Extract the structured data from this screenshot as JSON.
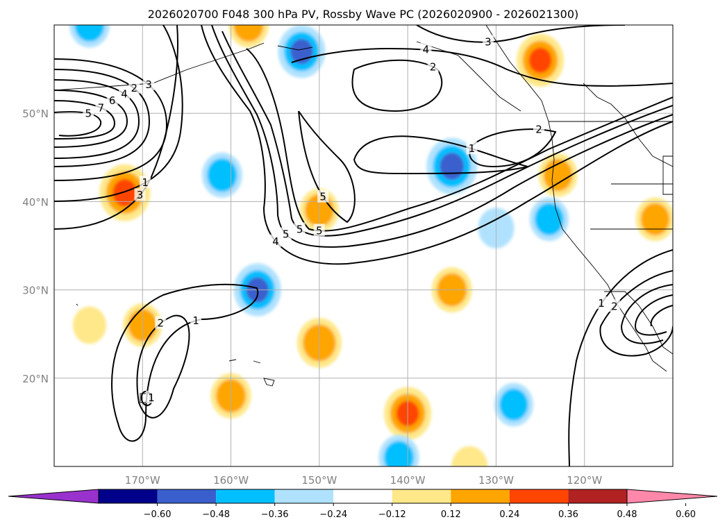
{
  "chart_data": {
    "type": "contour-map",
    "title": "2026020700 F048 300 hPa PV, Rossby Wave PC (2026020900 - 2026021300)",
    "x_ticks": [
      {
        "lon": -170,
        "label": "170°W"
      },
      {
        "lon": -160,
        "label": "160°W"
      },
      {
        "lon": -150,
        "label": "150°W"
      },
      {
        "lon": -140,
        "label": "140°W"
      },
      {
        "lon": -130,
        "label": "130°W"
      },
      {
        "lon": -120,
        "label": "120°W"
      }
    ],
    "y_ticks": [
      {
        "lat": 20,
        "label": "20°N"
      },
      {
        "lat": 30,
        "label": "30°N"
      },
      {
        "lat": 40,
        "label": "40°N"
      },
      {
        "lat": 50,
        "label": "50°N"
      }
    ],
    "lon_range": [
      -180,
      -110
    ],
    "lat_range": [
      10,
      60
    ],
    "grid": true,
    "colorbar": {
      "orientation": "horizontal",
      "extend": "both",
      "bounds": [
        -0.6,
        -0.48,
        -0.36,
        -0.24,
        -0.12,
        0.12,
        0.24,
        0.36,
        0.48,
        0.6
      ],
      "tick_labels": [
        "−0.60",
        "−0.48",
        "−0.36",
        "−0.24",
        "−0.12",
        "0.12",
        "0.24",
        "0.36",
        "0.48",
        "0.60"
      ],
      "colors": [
        "#9932cc",
        "#00008b",
        "#3a5fcd",
        "#00bfff",
        "#b0e2ff",
        "#ffffff",
        "#ffe88a",
        "#ffa500",
        "#ff4500",
        "#b22222",
        "#ff88aa"
      ]
    },
    "pv_contour_labels": [
      "2",
      "4",
      "6",
      "7",
      "5",
      "3",
      "1",
      "3",
      "4",
      "5",
      "5",
      "5",
      "4",
      "5",
      "2",
      "1",
      "2",
      "3",
      "1",
      "2",
      "1",
      "1",
      "2"
    ],
    "anomaly_blobs": [
      {
        "lon": -152,
        "lat": 57,
        "value": -0.4
      },
      {
        "lon": -172,
        "lat": 41,
        "value": 0.45
      },
      {
        "lon": -161,
        "lat": 43,
        "value": -0.3
      },
      {
        "lon": -150,
        "lat": 39,
        "value": 0.28
      },
      {
        "lon": -157,
        "lat": 30,
        "value": -0.4
      },
      {
        "lon": -150,
        "lat": 24,
        "value": 0.36
      },
      {
        "lon": -135,
        "lat": 30,
        "value": 0.3
      },
      {
        "lon": -135,
        "lat": 44,
        "value": -0.45
      },
      {
        "lon": -125,
        "lat": 56,
        "value": 0.4
      },
      {
        "lon": -123,
        "lat": 43,
        "value": 0.28
      },
      {
        "lon": -112,
        "lat": 38,
        "value": 0.28
      },
      {
        "lon": -124,
        "lat": 38,
        "value": -0.28
      },
      {
        "lon": -130,
        "lat": 37,
        "value": -0.24
      },
      {
        "lon": -160,
        "lat": 18,
        "value": 0.3
      },
      {
        "lon": -140,
        "lat": 16,
        "value": 0.4
      },
      {
        "lon": -170,
        "lat": 26,
        "value": 0.28
      },
      {
        "lon": -176,
        "lat": 26,
        "value": 0.2
      },
      {
        "lon": -128,
        "lat": 17,
        "value": -0.28
      },
      {
        "lon": -141,
        "lat": 11,
        "value": -0.3
      },
      {
        "lon": -133,
        "lat": 10,
        "value": 0.24
      },
      {
        "lon": -158,
        "lat": 60,
        "value": 0.3
      },
      {
        "lon": -176,
        "lat": 60,
        "value": -0.3
      }
    ]
  }
}
